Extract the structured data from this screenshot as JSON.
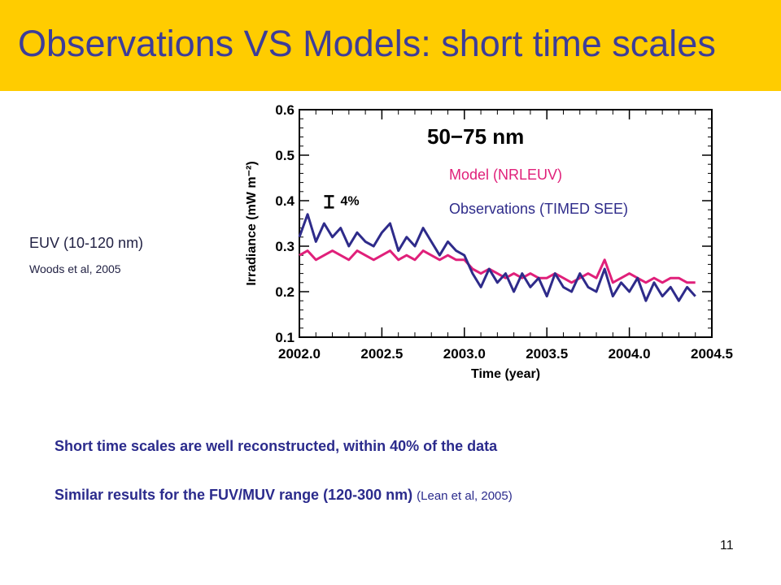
{
  "slide": {
    "title": "Observations VS Models: short time scales",
    "left_label": "EUV (10-120 nm)",
    "left_reference": "Woods et al, 2005",
    "note_1": "Short time scales are well reconstructed, within 40% of the data",
    "note_2": "Similar results for the FUV/MUV range (120-300 nm)",
    "note_2_reference": "(Lean et al, 2005)",
    "page_number": "11",
    "colors": {
      "title_bar": "#ffcc00",
      "title_text": "#3d3d99",
      "body_text": "#2b2b8c"
    }
  },
  "chart_data": {
    "type": "line",
    "title": "50−75 nm",
    "xlabel": "Time (year)",
    "ylabel": "Irradiance (mW m⁻²)",
    "xlim": [
      2002.0,
      2004.5
    ],
    "ylim": [
      0.1,
      0.6
    ],
    "xticks": [
      "2002.0",
      "2002.5",
      "2003.0",
      "2003.5",
      "2004.0",
      "2004.5"
    ],
    "yticks": [
      "0.1",
      "0.2",
      "0.3",
      "0.4",
      "0.5",
      "0.6"
    ],
    "annotation": "4%",
    "grid": false,
    "legend": "top-right",
    "series": [
      {
        "name": "Model (NRLEUV)",
        "color": "#e0207a",
        "x": [
          2002.0,
          2002.05,
          2002.1,
          2002.15,
          2002.2,
          2002.25,
          2002.3,
          2002.35,
          2002.4,
          2002.45,
          2002.5,
          2002.55,
          2002.6,
          2002.65,
          2002.7,
          2002.75,
          2002.8,
          2002.85,
          2002.9,
          2002.95,
          2003.0,
          2003.05,
          2003.1,
          2003.15,
          2003.2,
          2003.25,
          2003.3,
          2003.35,
          2003.4,
          2003.45,
          2003.5,
          2003.55,
          2003.6,
          2003.65,
          2003.7,
          2003.75,
          2003.8,
          2003.85,
          2003.9,
          2003.95,
          2004.0,
          2004.05,
          2004.1,
          2004.15,
          2004.2,
          2004.25,
          2004.3,
          2004.35,
          2004.4
        ],
        "values": [
          0.28,
          0.29,
          0.27,
          0.28,
          0.29,
          0.28,
          0.27,
          0.29,
          0.28,
          0.27,
          0.28,
          0.29,
          0.27,
          0.28,
          0.27,
          0.29,
          0.28,
          0.27,
          0.28,
          0.27,
          0.27,
          0.25,
          0.24,
          0.25,
          0.24,
          0.23,
          0.24,
          0.23,
          0.24,
          0.23,
          0.23,
          0.24,
          0.23,
          0.22,
          0.23,
          0.24,
          0.23,
          0.27,
          0.22,
          0.23,
          0.24,
          0.23,
          0.22,
          0.23,
          0.22,
          0.23,
          0.23,
          0.22,
          0.22
        ]
      },
      {
        "name": "Observations (TIMED SEE)",
        "color": "#2e2b8a",
        "x": [
          2002.0,
          2002.05,
          2002.1,
          2002.15,
          2002.2,
          2002.25,
          2002.3,
          2002.35,
          2002.4,
          2002.45,
          2002.5,
          2002.55,
          2002.6,
          2002.65,
          2002.7,
          2002.75,
          2002.8,
          2002.85,
          2002.9,
          2002.95,
          2003.0,
          2003.05,
          2003.1,
          2003.15,
          2003.2,
          2003.25,
          2003.3,
          2003.35,
          2003.4,
          2003.45,
          2003.5,
          2003.55,
          2003.6,
          2003.65,
          2003.7,
          2003.75,
          2003.8,
          2003.85,
          2003.9,
          2003.95,
          2004.0,
          2004.05,
          2004.1,
          2004.15,
          2004.2,
          2004.25,
          2004.3,
          2004.35,
          2004.4
        ],
        "values": [
          0.32,
          0.37,
          0.31,
          0.35,
          0.32,
          0.34,
          0.3,
          0.33,
          0.31,
          0.3,
          0.33,
          0.35,
          0.29,
          0.32,
          0.3,
          0.34,
          0.31,
          0.28,
          0.31,
          0.29,
          0.28,
          0.24,
          0.21,
          0.25,
          0.22,
          0.24,
          0.2,
          0.24,
          0.21,
          0.23,
          0.19,
          0.24,
          0.21,
          0.2,
          0.24,
          0.21,
          0.2,
          0.25,
          0.19,
          0.22,
          0.2,
          0.23,
          0.18,
          0.22,
          0.19,
          0.21,
          0.18,
          0.21,
          0.19
        ]
      }
    ]
  }
}
